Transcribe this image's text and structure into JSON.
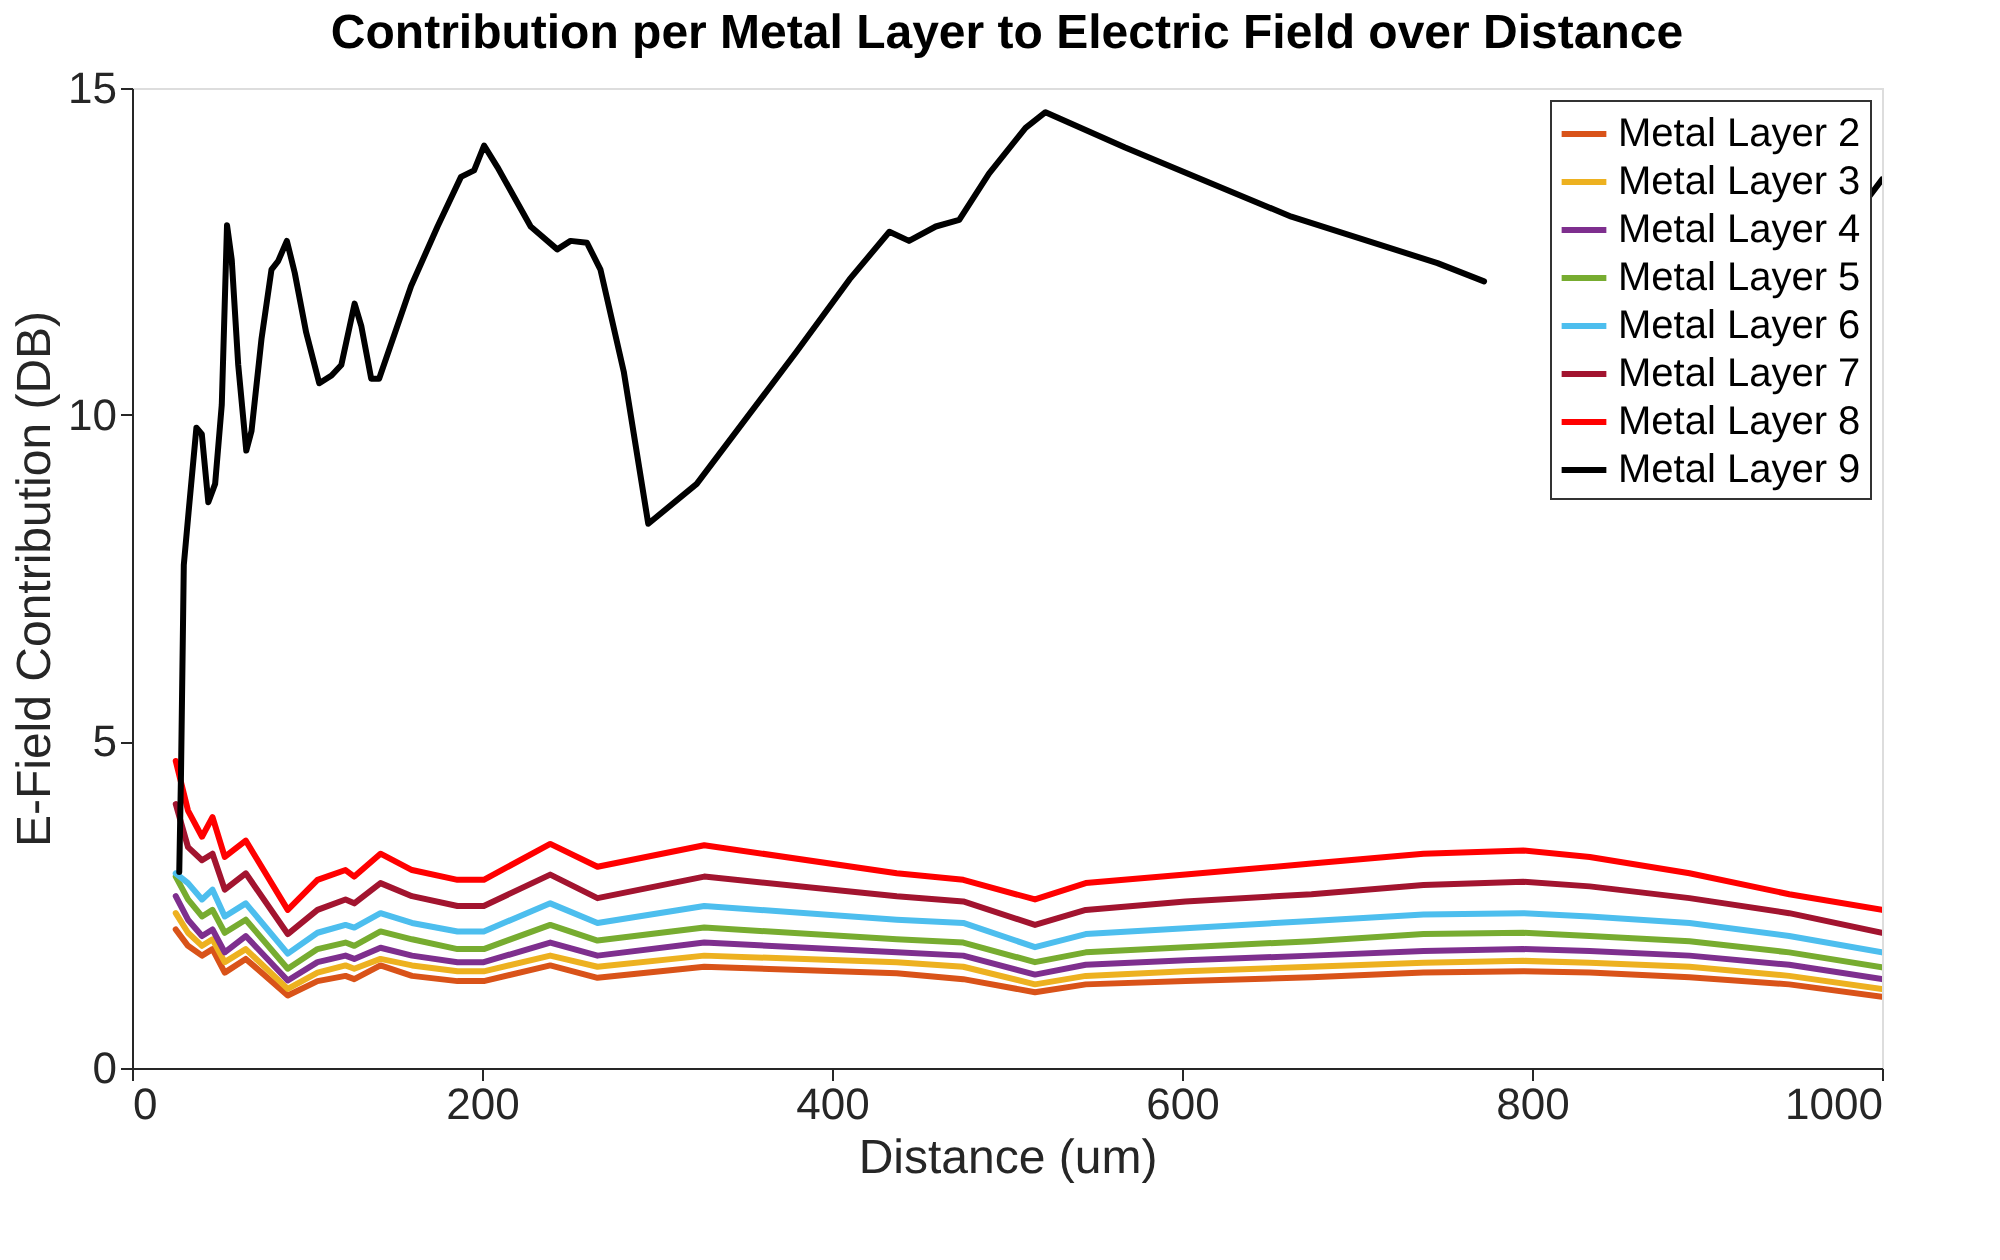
{
  "chart_data": {
    "type": "line",
    "title": "Contribution per Metal Layer to Electric Field over Distance",
    "xlabel": "Distance (um)",
    "ylabel": "E-Field Contribution (DB)",
    "x": [
      25,
      32,
      40,
      46,
      53,
      65,
      89,
      106,
      122,
      127,
      142,
      160,
      186,
      201,
      239,
      266,
      327,
      437,
      475,
      516,
      545,
      602,
      674,
      738,
      795,
      833,
      890,
      947,
      1000
    ],
    "series": [
      {
        "name": "Metal Layer 2",
        "color": "#d95319",
        "values": [
          2.12,
          1.87,
          1.72,
          1.82,
          1.46,
          1.67,
          1.11,
          1.33,
          1.41,
          1.36,
          1.57,
          1.41,
          1.33,
          1.33,
          1.57,
          1.38,
          1.55,
          1.45,
          1.36,
          1.16,
          1.28,
          1.33,
          1.39,
          1.46,
          1.48,
          1.46,
          1.39,
          1.28,
          1.09
        ]
      },
      {
        "name": "Metal Layer 3",
        "color": "#edb120",
        "values": [
          2.37,
          2.07,
          1.87,
          1.97,
          1.62,
          1.82,
          1.21,
          1.46,
          1.57,
          1.52,
          1.67,
          1.57,
          1.48,
          1.48,
          1.72,
          1.55,
          1.72,
          1.62,
          1.55,
          1.28,
          1.41,
          1.48,
          1.55,
          1.61,
          1.64,
          1.61,
          1.55,
          1.41,
          1.21
        ]
      },
      {
        "name": "Metal Layer 4",
        "color": "#7e2f8e",
        "values": [
          2.63,
          2.27,
          2.02,
          2.12,
          1.77,
          2.02,
          1.34,
          1.62,
          1.72,
          1.67,
          1.84,
          1.72,
          1.62,
          1.62,
          1.92,
          1.72,
          1.92,
          1.77,
          1.72,
          1.43,
          1.58,
          1.65,
          1.72,
          1.79,
          1.82,
          1.79,
          1.72,
          1.58,
          1.36
        ]
      },
      {
        "name": "Metal Layer 5",
        "color": "#77ac30",
        "values": [
          2.93,
          2.58,
          2.32,
          2.42,
          2.07,
          2.27,
          1.52,
          1.82,
          1.92,
          1.87,
          2.09,
          1.97,
          1.82,
          1.82,
          2.19,
          1.95,
          2.15,
          1.97,
          1.92,
          1.62,
          1.77,
          1.85,
          1.94,
          2.05,
          2.07,
          2.02,
          1.94,
          1.77,
          1.54
        ]
      },
      {
        "name": "Metal Layer 6",
        "color": "#4dbeee",
        "values": [
          2.98,
          2.83,
          2.58,
          2.73,
          2.32,
          2.52,
          1.75,
          2.07,
          2.19,
          2.15,
          2.37,
          2.22,
          2.09,
          2.09,
          2.52,
          2.22,
          2.48,
          2.27,
          2.22,
          1.85,
          2.05,
          2.14,
          2.25,
          2.35,
          2.37,
          2.32,
          2.22,
          2.02,
          1.77
        ]
      },
      {
        "name": "Metal Layer 7",
        "color": "#a2142f",
        "values": [
          4.04,
          3.38,
          3.18,
          3.28,
          2.73,
          2.98,
          2.05,
          2.42,
          2.58,
          2.52,
          2.83,
          2.63,
          2.48,
          2.48,
          2.96,
          2.6,
          2.93,
          2.63,
          2.55,
          2.19,
          2.42,
          2.55,
          2.66,
          2.8,
          2.85,
          2.78,
          2.6,
          2.37,
          2.07
        ]
      },
      {
        "name": "Metal Layer 8",
        "color": "#ff0000",
        "values": [
          4.7,
          3.94,
          3.54,
          3.84,
          3.23,
          3.48,
          2.42,
          2.88,
          3.03,
          2.93,
          3.28,
          3.03,
          2.88,
          2.88,
          3.43,
          3.08,
          3.41,
          2.98,
          2.88,
          2.58,
          2.83,
          2.96,
          3.13,
          3.28,
          3.33,
          3.23,
          2.98,
          2.66,
          2.42
        ]
      },
      {
        "name": "Metal Layer 9",
        "color": "#000000",
        "x": [
          27,
          28,
          29.6,
          32.3,
          36.8,
          39.9,
          43.6,
          47.5,
          51.3,
          54.3,
          57,
          60.7,
          65.3,
          68.3,
          74,
          79.7,
          83.5,
          88.5,
          93,
          99.5,
          107,
          114,
          119.6,
          127.2,
          131,
          136.7,
          141.2,
          159.5,
          174.6,
          188,
          195.5,
          201.2,
          208.8,
          227.8,
          243,
          250.6,
          260,
          267.7,
          281,
          295,
          322.7,
          379.6,
          410,
          432.8,
          444,
          459.3,
          472.7,
          489.7,
          510.6,
          522,
          567.5,
          662.5,
          746,
          772.6,
          800,
          900,
          993,
          1000
        ],
        "values": [
          3.0,
          4.5,
          7.7,
          8.5,
          9.8,
          9.7,
          8.66,
          8.94,
          10.15,
          12.9,
          12.37,
          10.76,
          9.45,
          9.75,
          11.16,
          12.22,
          12.35,
          12.66,
          12.17,
          11.26,
          10.48,
          10.6,
          10.76,
          11.7,
          11.36,
          10.55,
          10.55,
          11.97,
          12.88,
          13.64,
          13.74,
          14.12,
          13.79,
          12.88,
          12.53,
          12.66,
          12.63,
          12.22,
          10.66,
          8.33,
          8.94,
          10.96,
          12.07,
          12.8,
          12.66,
          12.88,
          12.98,
          13.69,
          14.39,
          14.63,
          14.09,
          13.03,
          12.32,
          12.04,
          null,
          null,
          13.35,
          13.6
        ]
      }
    ],
    "xlim": [
      0,
      1000
    ],
    "xticks": [
      0,
      200,
      400,
      600,
      800,
      1000
    ],
    "ylim": [
      0,
      15
    ],
    "yticks": [
      0,
      5,
      10,
      15
    ],
    "grid": false,
    "legend": "top right",
    "marker": "none",
    "line_style": "solid"
  }
}
